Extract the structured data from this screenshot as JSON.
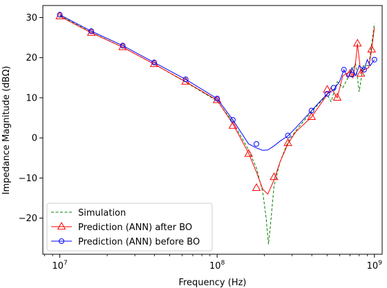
{
  "chart_data": {
    "type": "line",
    "title": "",
    "xlabel": "Frequency (Hz)",
    "ylabel": "Impedance Magnitude (dBΩ)",
    "xscale": "log",
    "xlim": [
      7800000,
      1120000000
    ],
    "ylim": [
      -29,
      33
    ],
    "x_ticks": [
      {
        "value": 10000000,
        "base": "10",
        "exp": "7"
      },
      {
        "value": 100000000,
        "base": "10",
        "exp": "8"
      },
      {
        "value": 1000000000,
        "base": "10",
        "exp": "9"
      }
    ],
    "y_ticks": [
      30,
      20,
      10,
      0,
      -10,
      -20
    ],
    "y_tick_labels": [
      "30",
      "20",
      "10",
      "0",
      "−10",
      "−20"
    ],
    "grid": false,
    "legend_position": "lower-left",
    "series": [
      {
        "name": "Simulation",
        "color": "#008000",
        "style": "dashed",
        "marker": "none",
        "x": [
          10000000,
          15850000,
          25120000,
          39810000,
          63100000,
          100000000,
          125900000,
          158500000,
          177800000,
          195000000,
          205000000,
          212000000,
          218000000,
          230000000,
          251200000,
          281800000,
          316200000,
          398100000,
          501200000,
          530000000,
          580000000,
          630000000,
          700000000,
          760000000,
          800000000,
          850000000,
          920000000,
          1000000000
        ],
        "y": [
          30.5,
          26.3,
          22.6,
          18.4,
          13.9,
          9.2,
          4.0,
          -3.0,
          -7.5,
          -13.5,
          -20.0,
          -26.5,
          -22.0,
          -12.0,
          -6.0,
          -1.0,
          1.8,
          6.5,
          10.8,
          9.0,
          14.0,
          12.5,
          16.0,
          18.5,
          11.5,
          18.0,
          18.0,
          28.5
        ]
      },
      {
        "name": "Prediction (ANN) after BO",
        "color": "#ff0000",
        "style": "solid",
        "marker": "triangle",
        "x": [
          10000000,
          15850000,
          25120000,
          39810000,
          63100000,
          100000000,
          125900000,
          158500000,
          177800000,
          195000000,
          210000000,
          230000000,
          251200000,
          281800000,
          316200000,
          398100000,
          501200000,
          530000000,
          580000000,
          630000000,
          700000000,
          730000000,
          760000000,
          780000000,
          820000000,
          860000000,
          920000000,
          960000000,
          1000000000
        ],
        "y": [
          30.3,
          26.2,
          22.6,
          18.4,
          14.0,
          9.4,
          3.5,
          -3.8,
          -8.5,
          -12.8,
          -14.0,
          -10.5,
          -6.0,
          -1.5,
          1.5,
          5.2,
          10.8,
          12.5,
          10.0,
          15.5,
          16.5,
          15.0,
          19.0,
          23.5,
          16.0,
          17.0,
          17.5,
          22.0,
          27.5
        ],
        "marker_x": [
          10000000,
          15850000,
          25120000,
          39810000,
          63100000,
          100000000,
          125900000,
          158500000,
          177800000,
          230000000,
          281800000,
          398100000,
          501200000,
          580000000,
          700000000,
          780000000,
          820000000,
          960000000
        ],
        "marker_y": [
          30.3,
          26.2,
          22.6,
          18.4,
          14.0,
          9.4,
          3.0,
          -4.0,
          -12.5,
          -9.8,
          -1.3,
          5.2,
          12.0,
          10.0,
          16.0,
          23.5,
          16.0,
          22.0
        ]
      },
      {
        "name": "Prediction (ANN) before BO",
        "color": "#0000ff",
        "style": "solid",
        "marker": "circle",
        "x": [
          10000000,
          15850000,
          25120000,
          39810000,
          63100000,
          100000000,
          125900000,
          158500000,
          177800000,
          195000000,
          210000000,
          230000000,
          251200000,
          281800000,
          316200000,
          398100000,
          501200000,
          550000000,
          600000000,
          640000000,
          680000000,
          720000000,
          760000000,
          800000000,
          860000000,
          900000000,
          940000000,
          1000000000
        ],
        "y": [
          30.7,
          26.6,
          23.0,
          18.8,
          14.6,
          9.8,
          4.5,
          -1.5,
          -2.5,
          -3.1,
          -3.0,
          -2.0,
          -0.8,
          0.5,
          2.5,
          6.8,
          11.0,
          12.0,
          14.0,
          17.0,
          15.0,
          17.5,
          15.5,
          18.0,
          17.0,
          19.5,
          18.0,
          19.5
        ],
        "marker_x": [
          10000000,
          15850000,
          25120000,
          39810000,
          63100000,
          100000000,
          125900000,
          177800000,
          281800000,
          398100000,
          501200000,
          550000000,
          640000000,
          720000000,
          860000000,
          1000000000
        ],
        "marker_y": [
          30.7,
          26.6,
          23.0,
          18.8,
          14.6,
          9.8,
          4.5,
          -1.5,
          0.6,
          6.8,
          11.0,
          12.5,
          17.0,
          15.8,
          17.0,
          19.5
        ]
      }
    ]
  }
}
